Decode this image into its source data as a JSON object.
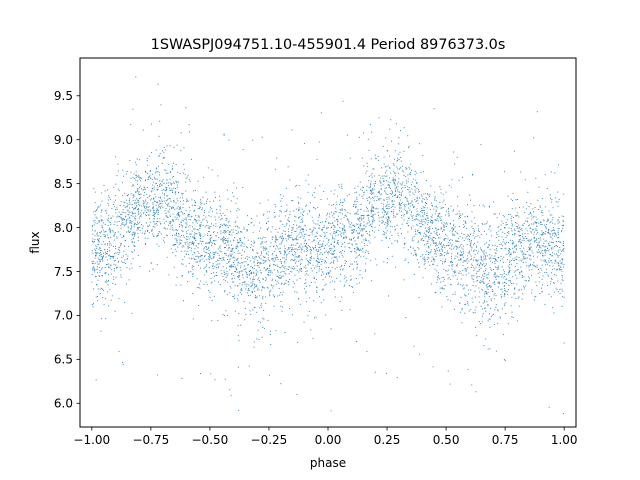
{
  "chart_data": {
    "type": "scatter",
    "title": "1SWASPJ094751.10-455901.4 Period 8976373.0s",
    "xlabel": "phase",
    "ylabel": "flux",
    "xlim": [
      -1.05,
      1.05
    ],
    "ylim": [
      5.73,
      9.93
    ],
    "xticks": [
      -1.0,
      -0.75,
      -0.5,
      -0.25,
      0.0,
      0.25,
      0.5,
      0.75,
      1.0
    ],
    "xtick_labels": [
      "−1.00",
      "−0.75",
      "−0.50",
      "−0.25",
      "0.00",
      "0.25",
      "0.50",
      "0.75",
      "1.00"
    ],
    "yticks": [
      6.0,
      6.5,
      7.0,
      7.5,
      8.0,
      8.5,
      9.0,
      9.5
    ],
    "ytick_labels": [
      "6.0",
      "6.5",
      "7.0",
      "7.5",
      "8.0",
      "8.5",
      "9.0",
      "9.5"
    ],
    "grid": false,
    "marker_color": "#1f77b4",
    "series": [
      {
        "x": [
          -1.0,
          -0.95,
          -0.9,
          -0.85,
          -0.8,
          -0.75,
          -0.7,
          -0.65,
          -0.6,
          -0.55,
          -0.5,
          -0.45,
          -0.4,
          -0.35,
          -0.3,
          -0.25,
          -0.2,
          -0.15,
          -0.1,
          -0.05,
          0.0,
          0.05,
          0.1,
          0.15,
          0.2,
          0.25,
          0.3,
          0.35,
          0.4,
          0.45,
          0.5,
          0.55,
          0.6,
          0.65,
          0.7,
          0.75,
          0.8,
          0.85,
          0.9,
          0.95,
          1.0
        ],
        "y": [
          7.75,
          7.8,
          7.85,
          8.05,
          8.3,
          8.25,
          8.4,
          8.2,
          8.0,
          7.9,
          7.85,
          7.75,
          7.7,
          7.55,
          7.45,
          7.6,
          7.7,
          7.8,
          7.8,
          7.8,
          7.8,
          7.85,
          7.9,
          8.05,
          8.3,
          8.3,
          8.35,
          8.2,
          8.0,
          7.9,
          7.8,
          7.7,
          7.65,
          7.55,
          7.45,
          7.65,
          7.75,
          7.8,
          7.85,
          7.8,
          7.75
        ]
      }
    ]
  }
}
